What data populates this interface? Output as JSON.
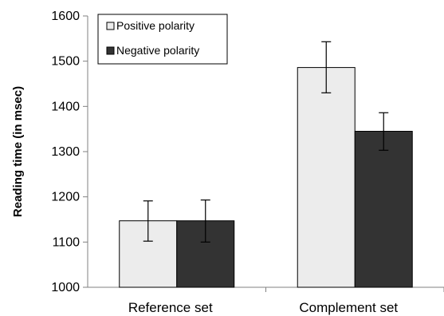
{
  "chart_data": {
    "type": "bar",
    "title": "",
    "xlabel": "",
    "ylabel": "Reading time (in msec)",
    "ylim": [
      1000,
      1600
    ],
    "yticks": [
      1000,
      1100,
      1200,
      1300,
      1400,
      1500,
      1600
    ],
    "categories": [
      "Reference set",
      "Complement set"
    ],
    "legend_position": "top-left",
    "grid": false,
    "series": [
      {
        "name": "Positive polarity",
        "color": "#ececec",
        "values": [
          1147,
          1486
        ],
        "error_low": [
          1102,
          1430
        ],
        "error_high": [
          1191,
          1543
        ]
      },
      {
        "name": "Negative polarity",
        "color": "#333333",
        "values": [
          1147,
          1345
        ],
        "error_low": [
          1100,
          1303
        ],
        "error_high": [
          1193,
          1386
        ]
      }
    ]
  }
}
